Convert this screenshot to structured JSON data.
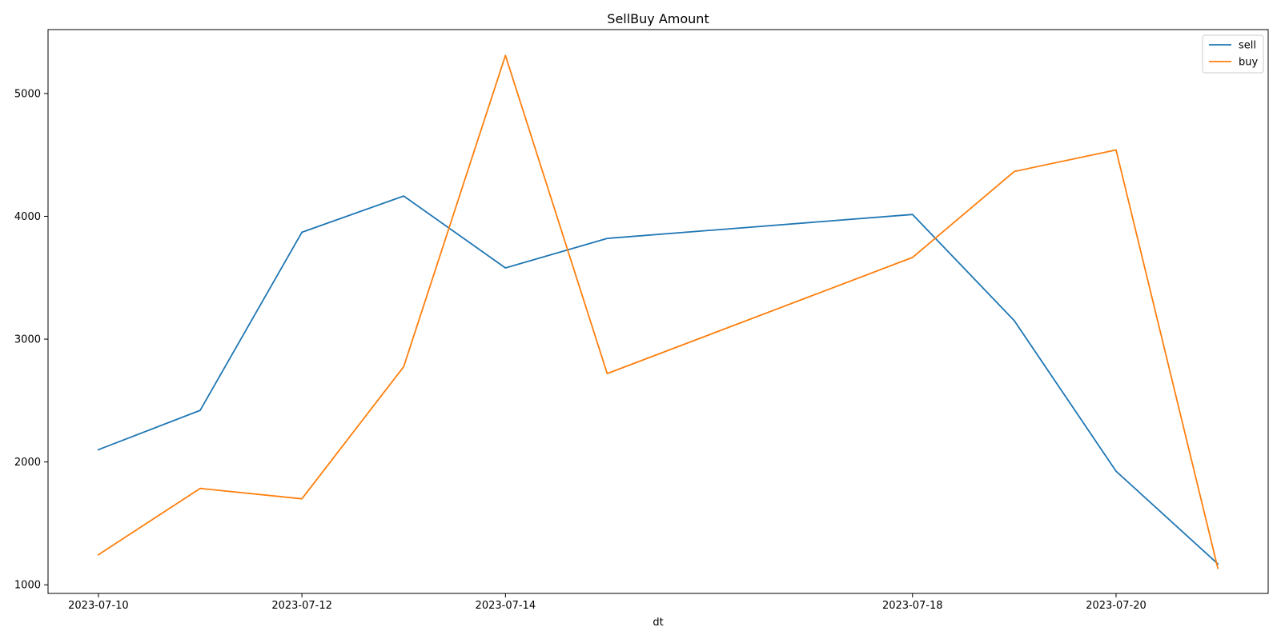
{
  "chart_data": {
    "type": "line",
    "title": "SellBuy Amount",
    "xlabel": "dt",
    "ylabel": "",
    "x": [
      "2023-07-10",
      "2023-07-11",
      "2023-07-12",
      "2023-07-13",
      "2023-07-14",
      "2023-07-15",
      "2023-07-18",
      "2023-07-19",
      "2023-07-20",
      "2023-07-21"
    ],
    "x_tick_labels": [
      "2023-07-10",
      "2023-07-12",
      "2023-07-14",
      "2023-07-18",
      "2023-07-20"
    ],
    "y_ticks": [
      1000,
      2000,
      3000,
      4000,
      5000
    ],
    "ylim": [
      930,
      5520
    ],
    "series": [
      {
        "name": "sell",
        "color": "#1f77b4",
        "values": [
          2100,
          2420,
          3870,
          4165,
          3580,
          3820,
          4015,
          3150,
          1925,
          1170
        ]
      },
      {
        "name": "buy",
        "color": "#ff7f0e",
        "values": [
          1245,
          1785,
          1700,
          2775,
          5310,
          2720,
          3665,
          4365,
          4540,
          1135
        ]
      }
    ],
    "grid": false,
    "legend_position": "top-right"
  }
}
